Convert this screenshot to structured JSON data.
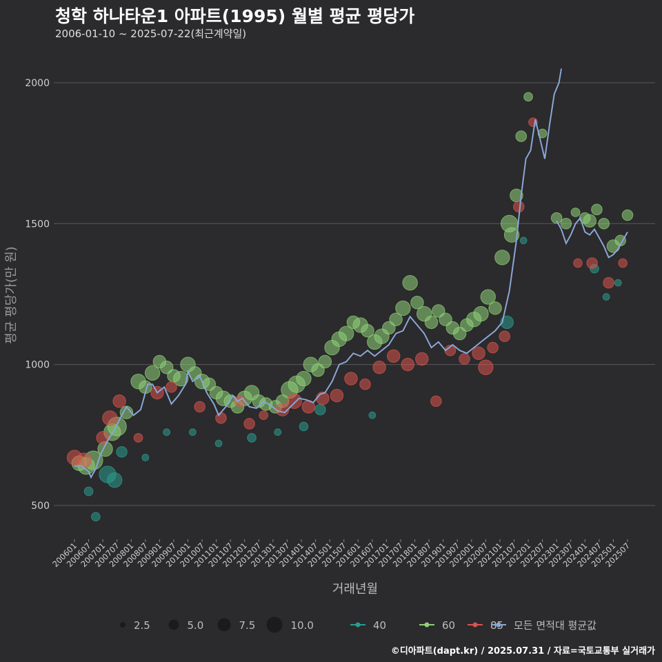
{
  "title": "청학 하나타운1 아파트(1995) 월별 평균 평당가",
  "subtitle": "2006-01-10 ~ 2025-07-22(최근계약일)",
  "footer": "©디아파트(dapt.kr) / 2025.07.31 / 자료=국토교통부 실거래가",
  "colors": {
    "background": "#2b2a2c",
    "grid": "#5a595b",
    "s40": "#2a9d8f",
    "s60": "#8fd17a",
    "s85": "#d9534f",
    "avg": "#8aa7d6",
    "text": "#e8e8e8"
  },
  "chart_data": {
    "type": "scatter",
    "title": "청학 하나타운1 아파트(1995) 월별 평균 평당가",
    "xlabel": "거래년월",
    "ylabel": "평균 평당가(만 원)",
    "ylim": [
      380,
      2110
    ],
    "yticks": [
      500,
      1000,
      1500,
      2000
    ],
    "x_start": "2006-01",
    "x_end": "2025-07",
    "xtick_labels": [
      "200601",
      "200607",
      "200701",
      "200707",
      "200801",
      "200807",
      "200901",
      "200907",
      "201001",
      "201007",
      "201101",
      "201107",
      "201201",
      "201207",
      "201301",
      "201307",
      "201401",
      "201407",
      "201501",
      "201507",
      "201601",
      "201607",
      "201701",
      "201707",
      "201801",
      "201807",
      "201901",
      "201907",
      "202001",
      "202007",
      "202101",
      "202107",
      "202201",
      "202207",
      "202301",
      "202307",
      "202401",
      "202407",
      "202501",
      "202507"
    ],
    "legend": {
      "size_title": "",
      "sizes": [
        2.5,
        5.0,
        7.5,
        10.0
      ],
      "size_labels": [
        "2.5",
        "5.0",
        "7.5",
        "10.0"
      ],
      "series_labels": [
        "40",
        "60",
        "85",
        "모든 면적대 평균값"
      ]
    },
    "series": [
      {
        "name": "모든 면적대 평균값",
        "type": "line",
        "points": [
          [
            "2006-01",
            640
          ],
          [
            "2006-04",
            640
          ],
          [
            "2006-07",
            620
          ],
          [
            "2006-08",
            600
          ],
          [
            "2006-10",
            630
          ],
          [
            "2006-12",
            680
          ],
          [
            "2007-03",
            730
          ],
          [
            "2007-06",
            770
          ],
          [
            "2007-09",
            820
          ],
          [
            "2007-11",
            850
          ],
          [
            "2008-02",
            820
          ],
          [
            "2008-05",
            840
          ],
          [
            "2008-08",
            930
          ],
          [
            "2008-10",
            930
          ],
          [
            "2008-12",
            900
          ],
          [
            "2009-03",
            920
          ],
          [
            "2009-06",
            860
          ],
          [
            "2009-09",
            890
          ],
          [
            "2009-12",
            930
          ],
          [
            "2010-01",
            975
          ],
          [
            "2010-03",
            940
          ],
          [
            "2010-06",
            960
          ],
          [
            "2010-09",
            900
          ],
          [
            "2010-12",
            860
          ],
          [
            "2011-02",
            820
          ],
          [
            "2011-05",
            850
          ],
          [
            "2011-08",
            890
          ],
          [
            "2011-10",
            870
          ],
          [
            "2011-12",
            880
          ],
          [
            "2012-03",
            850
          ],
          [
            "2012-06",
            845
          ],
          [
            "2012-09",
            870
          ],
          [
            "2012-12",
            855
          ],
          [
            "2013-03",
            835
          ],
          [
            "2013-06",
            830
          ],
          [
            "2013-09",
            855
          ],
          [
            "2013-12",
            880
          ],
          [
            "2014-03",
            875
          ],
          [
            "2014-06",
            865
          ],
          [
            "2014-09",
            895
          ],
          [
            "2014-11",
            900
          ],
          [
            "2015-02",
            940
          ],
          [
            "2015-05",
            1000
          ],
          [
            "2015-08",
            1010
          ],
          [
            "2015-11",
            1040
          ],
          [
            "2016-02",
            1030
          ],
          [
            "2016-05",
            1050
          ],
          [
            "2016-08",
            1030
          ],
          [
            "2016-11",
            1050
          ],
          [
            "2017-02",
            1070
          ],
          [
            "2017-05",
            1110
          ],
          [
            "2017-08",
            1120
          ],
          [
            "2017-11",
            1170
          ],
          [
            "2018-02",
            1140
          ],
          [
            "2018-05",
            1110
          ],
          [
            "2018-08",
            1060
          ],
          [
            "2018-11",
            1080
          ],
          [
            "2019-02",
            1050
          ],
          [
            "2019-05",
            1070
          ],
          [
            "2019-08",
            1050
          ],
          [
            "2019-11",
            1040
          ],
          [
            "2020-02",
            1060
          ],
          [
            "2020-05",
            1080
          ],
          [
            "2020-08",
            1100
          ],
          [
            "2020-11",
            1120
          ],
          [
            "2021-02",
            1150
          ],
          [
            "2021-05",
            1260
          ],
          [
            "2021-08",
            1440
          ],
          [
            "2021-10",
            1600
          ],
          [
            "2021-12",
            1730
          ],
          [
            "2022-02",
            1760
          ],
          [
            "2022-04",
            1870
          ],
          [
            "2022-06",
            1800
          ],
          [
            "2022-08",
            1730
          ],
          [
            "2022-10",
            1850
          ],
          [
            "2022-12",
            1960
          ],
          [
            "2023-02",
            2000
          ],
          [
            "2023-03",
            2050
          ]
        ]
      },
      {
        "name": "모든 면적대 평균값",
        "type": "line",
        "points": [
          [
            "2023-01",
            1510
          ],
          [
            "2023-03",
            1480
          ],
          [
            "2023-05",
            1430
          ],
          [
            "2023-07",
            1460
          ],
          [
            "2023-09",
            1500
          ],
          [
            "2023-11",
            1520
          ],
          [
            "2024-01",
            1470
          ],
          [
            "2024-03",
            1460
          ],
          [
            "2024-05",
            1480
          ],
          [
            "2024-07",
            1450
          ],
          [
            "2024-09",
            1420
          ],
          [
            "2024-11",
            1380
          ],
          [
            "2025-01",
            1390
          ],
          [
            "2025-03",
            1410
          ],
          [
            "2025-05",
            1440
          ],
          [
            "2025-07",
            1470
          ]
        ]
      },
      {
        "name": "40",
        "type": "scatter",
        "points": [
          [
            "2006-07",
            550,
            3
          ],
          [
            "2006-10",
            460,
            3
          ],
          [
            "2007-03",
            610,
            7
          ],
          [
            "2007-06",
            590,
            6
          ],
          [
            "2007-09",
            690,
            4
          ],
          [
            "2008-07",
            670,
            2
          ],
          [
            "2009-04",
            760,
            2
          ],
          [
            "2010-03",
            760,
            2
          ],
          [
            "2011-02",
            720,
            2
          ],
          [
            "2012-04",
            740,
            3
          ],
          [
            "2013-03",
            760,
            2
          ],
          [
            "2014-02",
            780,
            3
          ],
          [
            "2014-09",
            840,
            4
          ],
          [
            "2016-07",
            820,
            2
          ],
          [
            "2021-04",
            1150,
            5
          ],
          [
            "2021-11",
            1440,
            2
          ],
          [
            "2024-05",
            1340,
            3
          ],
          [
            "2024-10",
            1240,
            2
          ],
          [
            "2025-03",
            1290,
            2
          ]
        ]
      },
      {
        "name": "60",
        "type": "scatter",
        "points": [
          [
            "2006-03",
            650,
            6
          ],
          [
            "2006-06",
            640,
            7
          ],
          [
            "2006-09",
            660,
            8
          ],
          [
            "2007-02",
            700,
            6
          ],
          [
            "2007-05",
            760,
            7
          ],
          [
            "2007-07",
            780,
            8
          ],
          [
            "2007-11",
            830,
            5
          ],
          [
            "2008-04",
            940,
            6
          ],
          [
            "2008-07",
            920,
            5
          ],
          [
            "2008-10",
            970,
            6
          ],
          [
            "2009-01",
            1010,
            5
          ],
          [
            "2009-04",
            990,
            5
          ],
          [
            "2009-07",
            960,
            5
          ],
          [
            "2009-10",
            950,
            6
          ],
          [
            "2010-01",
            1000,
            6
          ],
          [
            "2010-04",
            970,
            5
          ],
          [
            "2010-07",
            940,
            6
          ],
          [
            "2010-10",
            930,
            5
          ],
          [
            "2011-01",
            900,
            5
          ],
          [
            "2011-04",
            880,
            6
          ],
          [
            "2011-07",
            870,
            5
          ],
          [
            "2011-10",
            850,
            5
          ],
          [
            "2012-01",
            880,
            6
          ],
          [
            "2012-04",
            900,
            6
          ],
          [
            "2012-07",
            870,
            5
          ],
          [
            "2012-10",
            860,
            5
          ],
          [
            "2013-02",
            850,
            5
          ],
          [
            "2013-05",
            870,
            5
          ],
          [
            "2013-08",
            910,
            7
          ],
          [
            "2013-11",
            930,
            7
          ],
          [
            "2014-02",
            950,
            6
          ],
          [
            "2014-05",
            1000,
            6
          ],
          [
            "2014-08",
            980,
            5
          ],
          [
            "2014-11",
            1010,
            5
          ],
          [
            "2015-02",
            1060,
            6
          ],
          [
            "2015-05",
            1090,
            6
          ],
          [
            "2015-08",
            1110,
            6
          ],
          [
            "2015-11",
            1150,
            5
          ],
          [
            "2016-02",
            1140,
            6
          ],
          [
            "2016-05",
            1120,
            5
          ],
          [
            "2016-08",
            1080,
            6
          ],
          [
            "2016-11",
            1100,
            6
          ],
          [
            "2017-02",
            1130,
            5
          ],
          [
            "2017-05",
            1160,
            5
          ],
          [
            "2017-08",
            1200,
            6
          ],
          [
            "2017-11",
            1290,
            6
          ],
          [
            "2018-02",
            1220,
            5
          ],
          [
            "2018-05",
            1180,
            6
          ],
          [
            "2018-08",
            1150,
            5
          ],
          [
            "2018-11",
            1190,
            5
          ],
          [
            "2019-02",
            1160,
            5
          ],
          [
            "2019-05",
            1130,
            5
          ],
          [
            "2019-08",
            1110,
            5
          ],
          [
            "2019-11",
            1140,
            5
          ],
          [
            "2020-02",
            1160,
            6
          ],
          [
            "2020-05",
            1180,
            6
          ],
          [
            "2020-08",
            1240,
            6
          ],
          [
            "2020-11",
            1200,
            5
          ],
          [
            "2021-02",
            1380,
            6
          ],
          [
            "2021-05",
            1500,
            7
          ],
          [
            "2021-06",
            1460,
            6
          ],
          [
            "2021-08",
            1600,
            5
          ],
          [
            "2021-10",
            1810,
            4
          ],
          [
            "2022-01",
            1950,
            3
          ],
          [
            "2022-07",
            1820,
            3
          ],
          [
            "2023-01",
            1520,
            4
          ],
          [
            "2023-05",
            1500,
            4
          ],
          [
            "2023-09",
            1540,
            3
          ],
          [
            "2024-01",
            1520,
            4
          ],
          [
            "2024-03",
            1510,
            5
          ],
          [
            "2024-06",
            1550,
            4
          ],
          [
            "2024-09",
            1500,
            4
          ],
          [
            "2025-01",
            1420,
            5
          ],
          [
            "2025-04",
            1440,
            4
          ],
          [
            "2025-07",
            1530,
            4
          ]
        ]
      },
      {
        "name": "85",
        "type": "scatter",
        "points": [
          [
            "2006-01",
            670,
            6
          ],
          [
            "2006-05",
            660,
            6
          ],
          [
            "2007-01",
            740,
            5
          ],
          [
            "2007-04",
            810,
            6
          ],
          [
            "2007-08",
            870,
            5
          ],
          [
            "2008-04",
            740,
            3
          ],
          [
            "2008-12",
            900,
            5
          ],
          [
            "2009-06",
            920,
            4
          ],
          [
            "2010-06",
            850,
            4
          ],
          [
            "2011-03",
            810,
            4
          ],
          [
            "2011-11",
            870,
            4
          ],
          [
            "2012-03",
            790,
            4
          ],
          [
            "2012-09",
            820,
            3
          ],
          [
            "2013-05",
            840,
            5
          ],
          [
            "2013-10",
            870,
            6
          ],
          [
            "2014-04",
            850,
            5
          ],
          [
            "2014-10",
            880,
            5
          ],
          [
            "2015-04",
            890,
            5
          ],
          [
            "2015-10",
            950,
            5
          ],
          [
            "2016-04",
            930,
            4
          ],
          [
            "2016-10",
            990,
            5
          ],
          [
            "2017-04",
            1030,
            5
          ],
          [
            "2017-10",
            1000,
            5
          ],
          [
            "2018-04",
            1020,
            5
          ],
          [
            "2018-10",
            870,
            4
          ],
          [
            "2019-04",
            1050,
            4
          ],
          [
            "2019-10",
            1020,
            4
          ],
          [
            "2020-04",
            1040,
            5
          ],
          [
            "2020-07",
            990,
            6
          ],
          [
            "2020-10",
            1060,
            4
          ],
          [
            "2021-03",
            1100,
            4
          ],
          [
            "2021-09",
            1560,
            4
          ],
          [
            "2022-03",
            1860,
            3
          ],
          [
            "2023-10",
            1360,
            3
          ],
          [
            "2024-04",
            1360,
            4
          ],
          [
            "2024-11",
            1290,
            4
          ],
          [
            "2025-05",
            1360,
            3
          ]
        ]
      }
    ]
  }
}
